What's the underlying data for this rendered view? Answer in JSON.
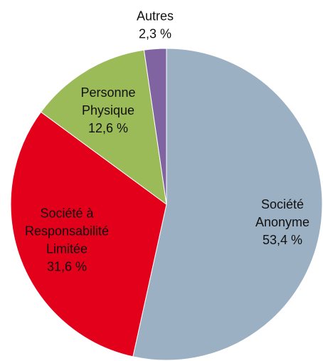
{
  "chart_data": {
    "type": "pie",
    "title": "",
    "slices": [
      {
        "name": "Société Anonyme",
        "value": 53.4,
        "value_label": "53,4 %",
        "label_lines": [
          "Société",
          "Anonyme",
          "53,4 %"
        ],
        "color": "#9bb0c2"
      },
      {
        "name": "Société à Responsabilité Limitée",
        "value": 31.6,
        "value_label": "31,6 %",
        "label_lines": [
          "Société à",
          "Responsabilité",
          "Limitée",
          "31,6 %"
        ],
        "color": "#e2001a"
      },
      {
        "name": "Personne Physique",
        "value": 12.6,
        "value_label": "12,6 %",
        "label_lines": [
          "Personne",
          "Physique",
          "12,6 %"
        ],
        "color": "#9bbb59"
      },
      {
        "name": "Autres",
        "value": 2.3,
        "value_label": "2,3 %",
        "label_lines": [
          "Autres",
          "2,3 %"
        ],
        "color": "#8064a2"
      }
    ],
    "start_angle": "12 o'clock",
    "direction": "clockwise",
    "legend": "none"
  }
}
